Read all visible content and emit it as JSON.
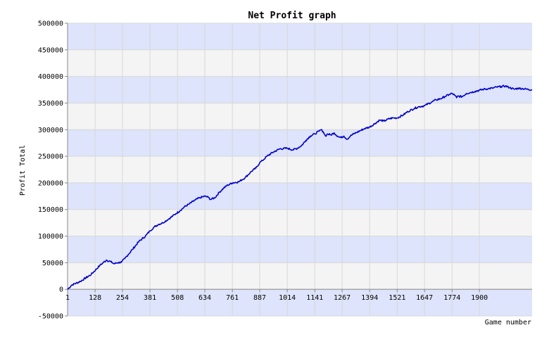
{
  "chart_data": {
    "type": "line",
    "title": "Net Profit graph",
    "xlabel": "Game number",
    "ylabel": "Profit Total",
    "xlim": [
      1,
      2143
    ],
    "ylim": [
      -50000,
      500000
    ],
    "x_ticks": [
      1,
      128,
      254,
      381,
      508,
      634,
      761,
      887,
      1014,
      1141,
      1267,
      1394,
      1521,
      1647,
      1774,
      1900
    ],
    "y_ticks": [
      -50000,
      0,
      50000,
      100000,
      150000,
      200000,
      250000,
      300000,
      350000,
      400000,
      450000,
      500000
    ],
    "grid": true,
    "band_colors": [
      "#dde4fb",
      "#f4f4f4"
    ],
    "line_color": "#0000cc",
    "series": [
      {
        "x": [
          1,
          20,
          60,
          110,
          150,
          180,
          200,
          215,
          230,
          250,
          265,
          280,
          300,
          330,
          360,
          381,
          400,
          420,
          440,
          470,
          500,
          520,
          540,
          560,
          590,
          610,
          634,
          650,
          660,
          680,
          700,
          720,
          740,
          761,
          790,
          820,
          850,
          870,
          887,
          900,
          920,
          950,
          980,
          1014,
          1040,
          1060,
          1080,
          1100,
          1120,
          1141,
          1160,
          1170,
          1180,
          1190,
          1200,
          1215,
          1230,
          1245,
          1260,
          1275,
          1290,
          1305,
          1320,
          1335,
          1350,
          1370,
          1394,
          1420,
          1440,
          1460,
          1480,
          1500,
          1521,
          1550,
          1570,
          1600,
          1620,
          1647,
          1680,
          1700,
          1720,
          1740,
          1760,
          1774,
          1785,
          1795,
          1800,
          1820,
          1840,
          1860,
          1880,
          1900,
          1920,
          1940,
          1960,
          1980,
          2000,
          2020,
          2040,
          2060,
          2080,
          2100,
          2120,
          2143
        ],
        "y": [
          0,
          8000,
          15000,
          28000,
          45000,
          55000,
          52000,
          48000,
          50000,
          51000,
          58000,
          65000,
          75000,
          90000,
          100000,
          110000,
          117000,
          122000,
          125000,
          133000,
          142000,
          148000,
          155000,
          160000,
          168000,
          172000,
          175000,
          173000,
          169000,
          172000,
          182000,
          190000,
          196000,
          200000,
          202000,
          210000,
          222000,
          228000,
          238000,
          242000,
          250000,
          258000,
          264000,
          265000,
          262000,
          265000,
          270000,
          280000,
          288000,
          292000,
          297000,
          300000,
          296000,
          288000,
          292000,
          290000,
          294000,
          288000,
          285000,
          288000,
          282000,
          288000,
          292000,
          295000,
          298000,
          302000,
          305000,
          312000,
          318000,
          316000,
          320000,
          322000,
          322000,
          328000,
          334000,
          340000,
          343000,
          345000,
          352000,
          356000,
          358000,
          362000,
          366000,
          368000,
          365000,
          360000,
          363000,
          362000,
          368000,
          370000,
          372000,
          374000,
          376000,
          377000,
          378000,
          380000,
          381000,
          382000,
          379000,
          376000,
          378000,
          377000,
          376000,
          375000
        ]
      }
    ]
  }
}
